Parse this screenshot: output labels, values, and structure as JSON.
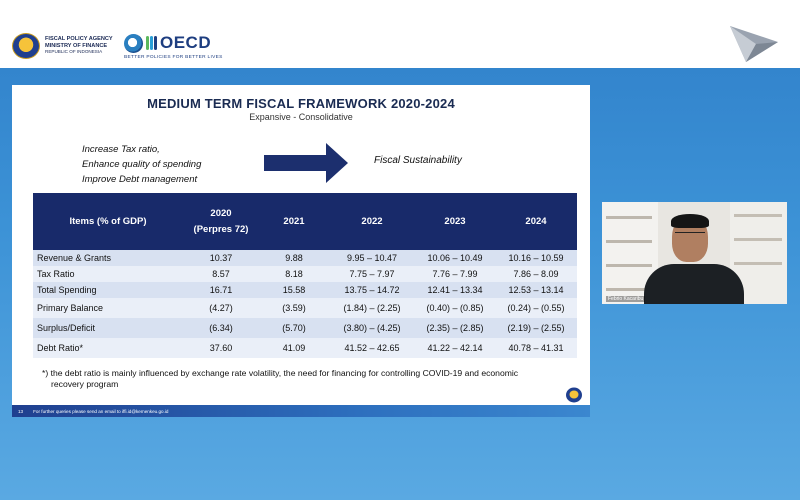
{
  "header": {
    "fpa": {
      "line1": "FISCAL POLICY AGENCY",
      "line2": "MINISTRY OF FINANCE",
      "line3": "REPUBLIC OF INDONESIA"
    },
    "oecd": {
      "name": "OECD",
      "tagline": "BETTER POLICIES FOR BETTER LIVES"
    }
  },
  "slide": {
    "title": "MEDIUM TERM FISCAL FRAMEWORK 2020-2024",
    "subtitle": "Expansive - Consolidative",
    "policies": [
      "Increase Tax ratio,",
      "Enhance quality of spending",
      "Improve Debt management"
    ],
    "goal": "Fiscal Sustainability",
    "table": {
      "header_label": "Items (% of GDP)",
      "years": [
        {
          "year": "2020",
          "note": "(Perpres 72)"
        },
        {
          "year": "2021",
          "note": ""
        },
        {
          "year": "2022",
          "note": ""
        },
        {
          "year": "2023",
          "note": ""
        },
        {
          "year": "2024",
          "note": ""
        }
      ],
      "rows": [
        {
          "label": "Revenue & Grants",
          "values": [
            "10.37",
            "9.88",
            "9.95 – 10.47",
            "10.06 – 10.49",
            "10.16 – 10.59"
          ]
        },
        {
          "label": "Tax Ratio",
          "values": [
            "8.57",
            "8.18",
            "7.75 – 7.97",
            "7.76 – 7.99",
            "7.86 – 8.09"
          ]
        },
        {
          "label": "Total Spending",
          "values": [
            "16.71",
            "15.58",
            "13.75 – 14.72",
            "12.41 – 13.34",
            "12.53 – 13.14"
          ]
        },
        {
          "label": "Primary Balance",
          "values": [
            "(4.27)",
            "(3.59)",
            "(1.84) – (2.25)",
            "(0.40) – (0.85)",
            "(0.24) – (0.55)"
          ]
        },
        {
          "label": "Surplus/Deficit",
          "values": [
            "(6.34)",
            "(5.70)",
            "(3.80) – (4.25)",
            "(2.35) – (2.85)",
            "(2.19) – (2.55)"
          ]
        },
        {
          "label": "Debt Ratio*",
          "values": [
            "37.60",
            "41.09",
            "41.52 – 42.65",
            "41.22 – 42.14",
            "40.78 – 41.31"
          ]
        }
      ]
    },
    "footnote": {
      "line1": "*) the debt ratio is mainly influenced by exchange rate volatility, the need for financing for controlling COVID-19 and economic",
      "line2": "recovery program"
    },
    "footer": {
      "page": "13",
      "contact": "For further queries please send an email to iffi.id@kemenkeu.go.id"
    }
  },
  "webcam": {
    "name": "Febrio Kacaribu"
  },
  "colors": {
    "table_header": "#182a6a",
    "row_dark": "#d8e1f1",
    "row_light": "#eaeff8",
    "background_blue": "#3c92d6"
  }
}
